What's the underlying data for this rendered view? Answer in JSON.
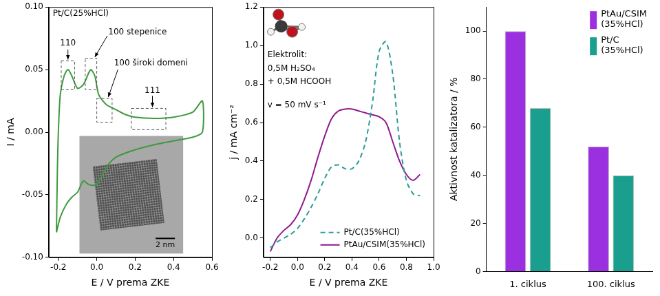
{
  "chart_data": [
    {
      "type": "line",
      "title": "Pt/C(25%HCl)",
      "x_label": "E / V prema ZKE",
      "y_label": "I / mA",
      "x": [
        -0.21,
        -0.205,
        -0.2,
        -0.19,
        -0.17,
        -0.15,
        -0.13,
        -0.1,
        -0.07,
        -0.04,
        -0.03,
        -0.01,
        0.01,
        0.05,
        0.1,
        0.15,
        0.2,
        0.3,
        0.4,
        0.5,
        0.55,
        0.55,
        0.5,
        0.4,
        0.3,
        0.2,
        0.1,
        0.05,
        0.0,
        -0.04,
        -0.07,
        -0.1,
        -0.13,
        -0.16,
        -0.19,
        -0.21
      ],
      "values": [
        -0.08,
        -0.03,
        0.0,
        0.03,
        0.045,
        0.05,
        0.045,
        0.035,
        0.038,
        0.048,
        0.05,
        0.045,
        0.03,
        0.022,
        0.018,
        0.014,
        0.012,
        0.011,
        0.012,
        0.016,
        0.025,
        0.0,
        -0.004,
        -0.007,
        -0.01,
        -0.014,
        -0.02,
        -0.028,
        -0.042,
        -0.042,
        -0.039,
        -0.048,
        -0.052,
        -0.058,
        -0.068,
        -0.08
      ],
      "color": "#3d9a3d",
      "xlim": [
        -0.25,
        0.6
      ],
      "xticks": [
        -0.2,
        {
          "value": 0,
          "label": "0.0"
        },
        0.2,
        0.4,
        0.6
      ],
      "ylim": [
        -0.1,
        0.1
      ],
      "yticks": [
        {
          "value": -0.1,
          "label": "-0.10"
        },
        {
          "value": -0.05,
          "label": "-0.05"
        },
        {
          "value": 0,
          "label": "0.00"
        },
        {
          "value": 0.05,
          "label": "0.05"
        },
        {
          "value": 0.1,
          "label": "0.10"
        }
      ],
      "grid": false,
      "annotations": [
        "110",
        "100 stepenice",
        "100 široki domeni",
        "111"
      ],
      "scale_bar_label": "2 nm"
    },
    {
      "type": "line",
      "x_label": "E / V prema ZKE",
      "y_label": "j / mA cm⁻²",
      "x": [
        -0.2,
        -0.15,
        -0.1,
        -0.05,
        0.0,
        0.05,
        0.1,
        0.15,
        0.2,
        0.25,
        0.3,
        0.35,
        0.4,
        0.45,
        0.5,
        0.55,
        0.6,
        0.65,
        0.7,
        0.75,
        0.8,
        0.85,
        0.9
      ],
      "series": [
        {
          "name": "Pt/C(35%HCl)",
          "color": "#2a9d95",
          "line_style": "dashed",
          "values": [
            -0.05,
            -0.02,
            0.0,
            0.02,
            0.05,
            0.1,
            0.16,
            0.23,
            0.31,
            0.37,
            0.38,
            0.36,
            0.36,
            0.4,
            0.5,
            0.7,
            0.97,
            1.02,
            0.85,
            0.5,
            0.3,
            0.23,
            0.22
          ]
        },
        {
          "name": "PtAu/CSIM(35%HCl)",
          "color": "#8e1a8e",
          "line_style": "solid",
          "values": [
            -0.07,
            0.0,
            0.04,
            0.07,
            0.12,
            0.2,
            0.3,
            0.42,
            0.53,
            0.62,
            0.66,
            0.67,
            0.67,
            0.66,
            0.65,
            0.64,
            0.63,
            0.6,
            0.5,
            0.4,
            0.33,
            0.3,
            0.33
          ]
        }
      ],
      "xlim": [
        -0.25,
        1.0
      ],
      "xticks": [
        -0.2,
        {
          "value": 0,
          "label": "0.0"
        },
        0.2,
        0.4,
        0.6,
        0.8,
        {
          "value": 1,
          "label": "1.0"
        }
      ],
      "ylim": [
        -0.1,
        1.2
      ],
      "yticks": [
        {
          "value": 0,
          "label": "0.0"
        },
        0.2,
        0.4,
        0.6,
        0.8,
        {
          "value": 1,
          "label": "1.0"
        },
        1.2
      ],
      "grid": false,
      "legend": "lower right",
      "annotations": [
        "Elektrolit:",
        "0,5M H₂SO₄",
        "+ 0,5M HCOOH",
        "v = 50 mV s⁻¹"
      ]
    },
    {
      "type": "bar",
      "y_label": "Aktivnost katalizatora / %",
      "categories": [
        "1. ciklus",
        "100. ciklus"
      ],
      "series": [
        {
          "name": "PtAu/CSIM (35%HCl)",
          "color": "#9b30e0",
          "values": [
            100,
            52
          ]
        },
        {
          "name": "Pt/C (35%HCl)",
          "color": "#1a9e8e",
          "values": [
            68,
            40
          ]
        }
      ],
      "ylim": [
        0,
        110
      ],
      "yticks": [
        0,
        20,
        40,
        60,
        80,
        100
      ],
      "grid": false,
      "legend": "upper right"
    }
  ]
}
